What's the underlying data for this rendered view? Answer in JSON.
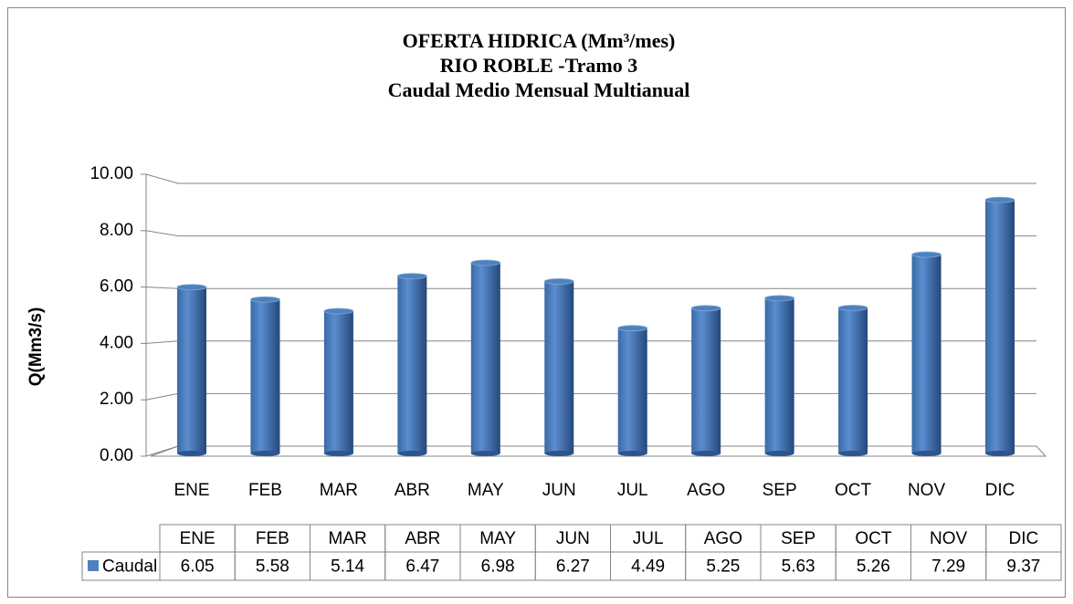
{
  "chart_data": {
    "type": "bar",
    "title": [
      "OFERTA HIDRICA (Mm³/mes)",
      "RIO ROBLE -Tramo 3",
      "Caudal Medio Mensual Multianual"
    ],
    "y_label": "Q(Mm3/s)",
    "categories": [
      "ENE",
      "FEB",
      "MAR",
      "ABR",
      "MAY",
      "JUN",
      "JUL",
      "AGO",
      "SEP",
      "OCT",
      "NOV",
      "DIC"
    ],
    "series": [
      {
        "name": "Caudal",
        "color": "#4f81bd",
        "values": [
          6.05,
          5.58,
          5.14,
          6.47,
          6.98,
          6.27,
          4.49,
          5.25,
          5.63,
          5.26,
          7.29,
          9.37
        ]
      }
    ],
    "ylim": [
      0,
      10
    ],
    "yticks": [
      {
        "value": 0,
        "label": "0.00"
      },
      {
        "value": 2,
        "label": "2.00"
      },
      {
        "value": 4,
        "label": "4.00"
      },
      {
        "value": 6,
        "label": "6.00"
      },
      {
        "value": 8,
        "label": "8.00"
      },
      {
        "value": 10,
        "label": "10.00"
      }
    ],
    "grid": true,
    "data_table": true
  }
}
